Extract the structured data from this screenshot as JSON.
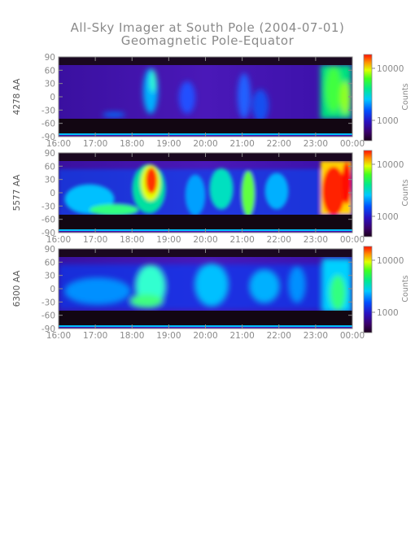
{
  "title": "All-Sky Imager at South Pole (2004-07-01)",
  "subtitle": "Geomagnetic Pole-Equator",
  "chart_data": [
    {
      "type": "heatmap",
      "ylabel": "4278 AA",
      "x_ticks": [
        "16:00",
        "17:00",
        "18:00",
        "19:00",
        "20:00",
        "21:00",
        "22:00",
        "23:00",
        "00:00"
      ],
      "y_ticks": [
        90,
        60,
        30,
        0,
        -30,
        -60,
        -90
      ],
      "ylim": [
        -90,
        90
      ],
      "colorbar": {
        "label": "Counts",
        "ticks": [
          "10000",
          "1000"
        ]
      }
    },
    {
      "type": "heatmap",
      "ylabel": "5577 AA",
      "x_ticks": [
        "16:00",
        "17:00",
        "18:00",
        "19:00",
        "20:00",
        "21:00",
        "22:00",
        "23:00",
        "00:00"
      ],
      "y_ticks": [
        90,
        60,
        30,
        0,
        -30,
        -60,
        -90
      ],
      "ylim": [
        -90,
        90
      ],
      "colorbar": {
        "label": "Counts",
        "ticks": [
          "10000",
          "1000"
        ]
      }
    },
    {
      "type": "heatmap",
      "ylabel": "6300 AA",
      "x_ticks": [
        "16:00",
        "17:00",
        "18:00",
        "19:00",
        "20:00",
        "21:00",
        "22:00",
        "23:00",
        "00:00"
      ],
      "y_ticks": [
        90,
        60,
        30,
        0,
        -30,
        -60,
        -90
      ],
      "ylim": [
        -90,
        90
      ],
      "colorbar": {
        "label": "Counts",
        "ticks": [
          "10000",
          "1000"
        ]
      }
    }
  ]
}
